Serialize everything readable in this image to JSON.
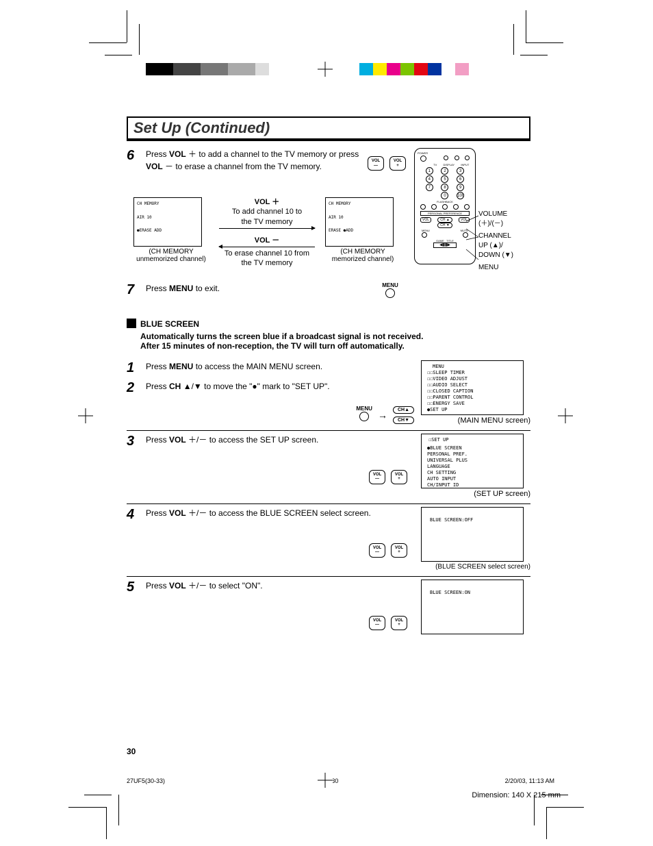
{
  "cropmarks": {
    "color_bars_left": [
      "#000000",
      "#000000",
      "#444444",
      "#444444",
      "#777777",
      "#777777",
      "#aaaaaa",
      "#aaaaaa",
      "#dddddd",
      "#ffffff"
    ],
    "color_bars_right": [
      "#00aee0",
      "#ffea00",
      "#e9008b",
      "#7bc400",
      "#e30613",
      "#0033a0",
      "#ffffff",
      "#f29ec4"
    ]
  },
  "title": "Set Up (Continued)",
  "step6": {
    "num": "6",
    "text_pre": "Press ",
    "vol": "VOL",
    "plus": " ＋ ",
    "text_mid": "to add a channel to the TV memory or press ",
    "minus": " － ",
    "text_end": "to erase a channel from the TV memory.",
    "left_tv": {
      "l1": "CH MEMORY",
      "l2": "AIR 10",
      "l3": "●ERASE   ADD"
    },
    "left_caption": "(CH MEMORY\nunmemorized channel)",
    "arrow_top_title": "VOL ＋",
    "arrow_top_text": "To add channel 10 to\nthe TV memory",
    "arrow_bot_title": "VOL －",
    "arrow_bot_text": "To erase channel 10 from\nthe TV memory",
    "right_tv": {
      "l1": "CH MEMORY",
      "l2": "AIR 10",
      "l3": "ERASE   ●ADD"
    },
    "right_caption": "(CH MEMORY\nmemorized channel)",
    "vol_btns": {
      "minus": "VOL\n—",
      "plus": "VOL\n+"
    }
  },
  "remote": {
    "labels": {
      "volume": "VOLUME\n(＋)/(－)",
      "channel": "CHANNEL\nUP (▲)/\nDOWN (▼)",
      "menu": "MENU"
    },
    "top_row": [
      "POWER"
    ],
    "row_labels": [
      "TV",
      "DISPLAY",
      "INPUT"
    ],
    "num_rows": [
      [
        "1",
        "2",
        "3"
      ],
      [
        "4",
        "5",
        "6"
      ],
      [
        "7",
        "8",
        "9"
      ],
      [
        "",
        "0",
        "100"
      ]
    ],
    "mid_label": "FLASHBACK",
    "pref_label": "PERSONAL PREFERENCE",
    "vol_btns": [
      "VOL",
      "CH ▲",
      "VOL"
    ],
    "ch_down": "CH ▼",
    "bottom": [
      "MENU",
      "MUTE"
    ]
  },
  "step7": {
    "num": "7",
    "text": "Press ",
    "bold": "MENU",
    "text2": " to exit.",
    "menu_label": "MENU"
  },
  "blue_screen": {
    "header": "BLUE SCREEN",
    "desc": "Automatically turns the screen blue if a broadcast signal is not received. After 15 minutes of non-reception, the TV will turn off automatically."
  },
  "steps_blue": [
    {
      "num": "1",
      "pre": "Press ",
      "b": "MENU",
      "post": " to access the MAIN MENU screen."
    },
    {
      "num": "2",
      "pre": "Press ",
      "b": "CH",
      "sym": " ▲/▼ ",
      "post": "to move the \"●\" mark to \"SET UP\"."
    }
  ],
  "menu_circle_label": "MENU",
  "ch_up_label": "CH▲",
  "ch_down_label": "CH▼",
  "main_menu_screen": {
    "title": "MENU",
    "items": [
      "☐☐SLEEP TIMER",
      "☐☐VIDEO ADJUST",
      "☐☐AUDIO SELECT",
      "☐☐CLOSED CAPTION",
      "☐☐PARENT CONTROL",
      "☐☐ENERGY SAVE",
      "●SET UP"
    ],
    "caption": "(MAIN MENU screen)"
  },
  "step3": {
    "num": "3",
    "pre": "Press ",
    "b": "VOL",
    "sym": " ＋/－ ",
    "post": "to access the SET UP screen."
  },
  "setup_screen": {
    "title": "☐SET UP",
    "items": [
      "●BLUE SCREEN",
      " PERSONAL PREF.",
      " UNIVERSAL PLUS",
      " LANGUAGE",
      " CH SETTING",
      " AUTO INPUT",
      " CH/INPUT ID"
    ],
    "caption": "(SET UP screen)"
  },
  "step4": {
    "num": "4",
    "pre": "Press ",
    "b": "VOL",
    "sym": " ＋/－ ",
    "post": "to access the BLUE SCREEN select screen."
  },
  "blue_off_screen": {
    "line": "BLUE SCREEN:OFF",
    "caption": "(BLUE SCREEN select screen)"
  },
  "step5": {
    "num": "5",
    "pre": "Press ",
    "b": "VOL",
    "sym": " ＋/－ ",
    "post": "to select \"ON\"."
  },
  "blue_on_screen": {
    "line": "BLUE SCREEN:ON"
  },
  "page_num": "30",
  "print_info": {
    "file": "27UF5(30-33)",
    "pg": "30",
    "date": "2/20/03, 11:13 AM"
  },
  "dimension": "Dimension: 140  X 215 mm"
}
